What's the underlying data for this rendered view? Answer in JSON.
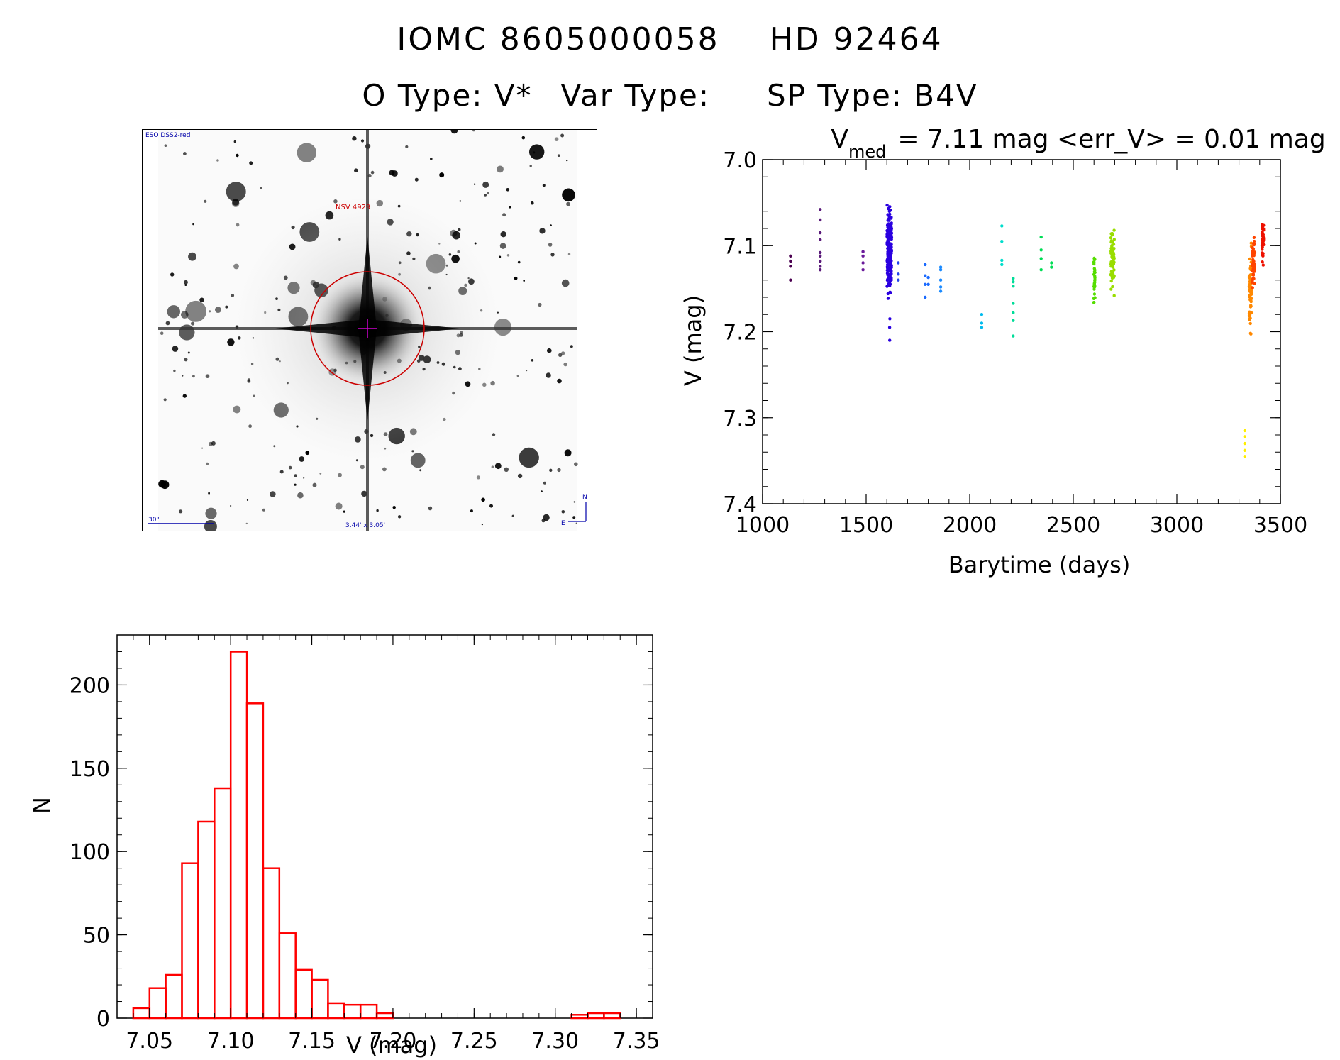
{
  "header": {
    "id_label": "IOMC 8605000058",
    "hd_label": "HD  92464",
    "otype": "O Type: V*",
    "vartype": "Var Type:",
    "sptype": "SP Type: B4V"
  },
  "image_panel": {
    "survey_label": "ESO DSS2-red",
    "object_label": "NSV 4929",
    "scale_label": "30\"",
    "fov_label": "3.44' x 3.05'",
    "north_label": "N",
    "east_label": "E",
    "colors": {
      "stars": "#000000",
      "marker": "#cc0000",
      "annotation": "#0000aa"
    }
  },
  "chart_data": [
    {
      "type": "scatter",
      "name": "light-curve",
      "title_main": "V",
      "title_sub": "med",
      "title_rest": "= 7.11 mag <err_V> = 0.01 mag",
      "xlabel": "Barytime (days)",
      "ylabel": "V (mag)",
      "xlim": [
        1000,
        3500
      ],
      "ylim": [
        7.4,
        7.0
      ],
      "y_inverted": true,
      "xticks": [
        1000,
        1500,
        2000,
        2500,
        3000,
        3500
      ],
      "yticks": [
        7.0,
        7.1,
        7.2,
        7.3,
        7.4
      ],
      "ytick_labels": [
        "7.0",
        "7.1",
        "7.2",
        "7.3",
        "7.4"
      ],
      "groups": [
        {
          "color": "#4b0050",
          "x": 1135,
          "y": [
            7.112,
            7.118,
            7.124,
            7.14
          ]
        },
        {
          "color": "#5a1a7a",
          "x": 1278,
          "y": [
            7.058,
            7.07,
            7.085,
            7.093,
            7.108,
            7.112,
            7.118,
            7.124,
            7.128
          ]
        },
        {
          "color": "#6a1a9a",
          "x": 1485,
          "y": [
            7.107,
            7.112,
            7.12,
            7.128
          ]
        },
        {
          "color": "#2a00e0",
          "x": 1612,
          "spread": 22,
          "band": [
            7.04,
            7.175
          ],
          "n": 220,
          "extra": [
            7.21,
            7.195,
            7.185
          ]
        },
        {
          "color": "#2244ee",
          "x": 1655,
          "y": [
            7.12,
            7.133,
            7.14
          ]
        },
        {
          "color": "#1a6aff",
          "x": 1785,
          "y": [
            7.122,
            7.135,
            7.145,
            7.16
          ]
        },
        {
          "color": "#1a6aff",
          "x": 1800,
          "y": [
            7.137,
            7.145
          ]
        },
        {
          "color": "#1a8aff",
          "x": 1860,
          "y": [
            7.125,
            7.128,
            7.14,
            7.148,
            7.153
          ]
        },
        {
          "color": "#00bbee",
          "x": 2058,
          "y": [
            7.18,
            7.19,
            7.195
          ]
        },
        {
          "color": "#00ddcc",
          "x": 2155,
          "y": [
            7.077,
            7.095,
            7.117,
            7.122
          ]
        },
        {
          "color": "#00dd99",
          "x": 2210,
          "y": [
            7.138,
            7.142,
            7.147,
            7.167,
            7.178,
            7.187,
            7.205
          ]
        },
        {
          "color": "#00dd55",
          "x": 2345,
          "y": [
            7.09,
            7.105,
            7.115,
            7.128
          ]
        },
        {
          "color": "#00dd55",
          "x": 2395,
          "y": [
            7.12,
            7.125
          ]
        },
        {
          "color": "#55dd00",
          "x": 2602,
          "spread": 6,
          "band": [
            7.103,
            7.178
          ],
          "n": 30
        },
        {
          "color": "#99dd00",
          "x": 2690,
          "spread": 18,
          "band": [
            7.072,
            7.168
          ],
          "n": 70
        },
        {
          "color": "#ffee00",
          "x": 3328,
          "y": [
            7.315,
            7.322,
            7.33,
            7.338,
            7.345
          ]
        },
        {
          "color": "#ff8800",
          "x": 3355,
          "spread": 12,
          "band": [
            7.085,
            7.225
          ],
          "n": 60
        },
        {
          "color": "#ff4400",
          "x": 3370,
          "spread": 14,
          "band": [
            7.08,
            7.16
          ],
          "n": 50
        },
        {
          "color": "#ee1100",
          "x": 3415,
          "spread": 8,
          "band": [
            7.058,
            7.135
          ],
          "n": 40
        }
      ]
    },
    {
      "type": "bar",
      "name": "histogram",
      "xlabel": "V (mag)",
      "ylabel": "N",
      "xlim": [
        7.03,
        7.36
      ],
      "ylim": [
        0,
        230
      ],
      "bar_color": "#ff0000",
      "bin_width": 0.01,
      "xticks": [
        7.05,
        7.1,
        7.15,
        7.2,
        7.25,
        7.3,
        7.35
      ],
      "xtick_labels": [
        "7.05",
        "7.10",
        "7.15",
        "7.20",
        "7.25",
        "7.30",
        "7.35"
      ],
      "yticks": [
        0,
        50,
        100,
        150,
        200
      ],
      "bin_starts": [
        7.04,
        7.05,
        7.06,
        7.07,
        7.08,
        7.09,
        7.1,
        7.11,
        7.12,
        7.13,
        7.14,
        7.15,
        7.16,
        7.17,
        7.18,
        7.19,
        7.2,
        7.21,
        7.22,
        7.23,
        7.24,
        7.25,
        7.26,
        7.27,
        7.28,
        7.29,
        7.3,
        7.31,
        7.32,
        7.33,
        7.34
      ],
      "values": [
        6,
        18,
        26,
        93,
        118,
        138,
        220,
        189,
        90,
        51,
        29,
        23,
        9,
        8,
        8,
        3,
        0,
        0,
        0,
        0,
        0,
        0,
        0,
        0,
        0,
        0,
        0,
        2,
        3,
        3,
        0
      ]
    }
  ]
}
